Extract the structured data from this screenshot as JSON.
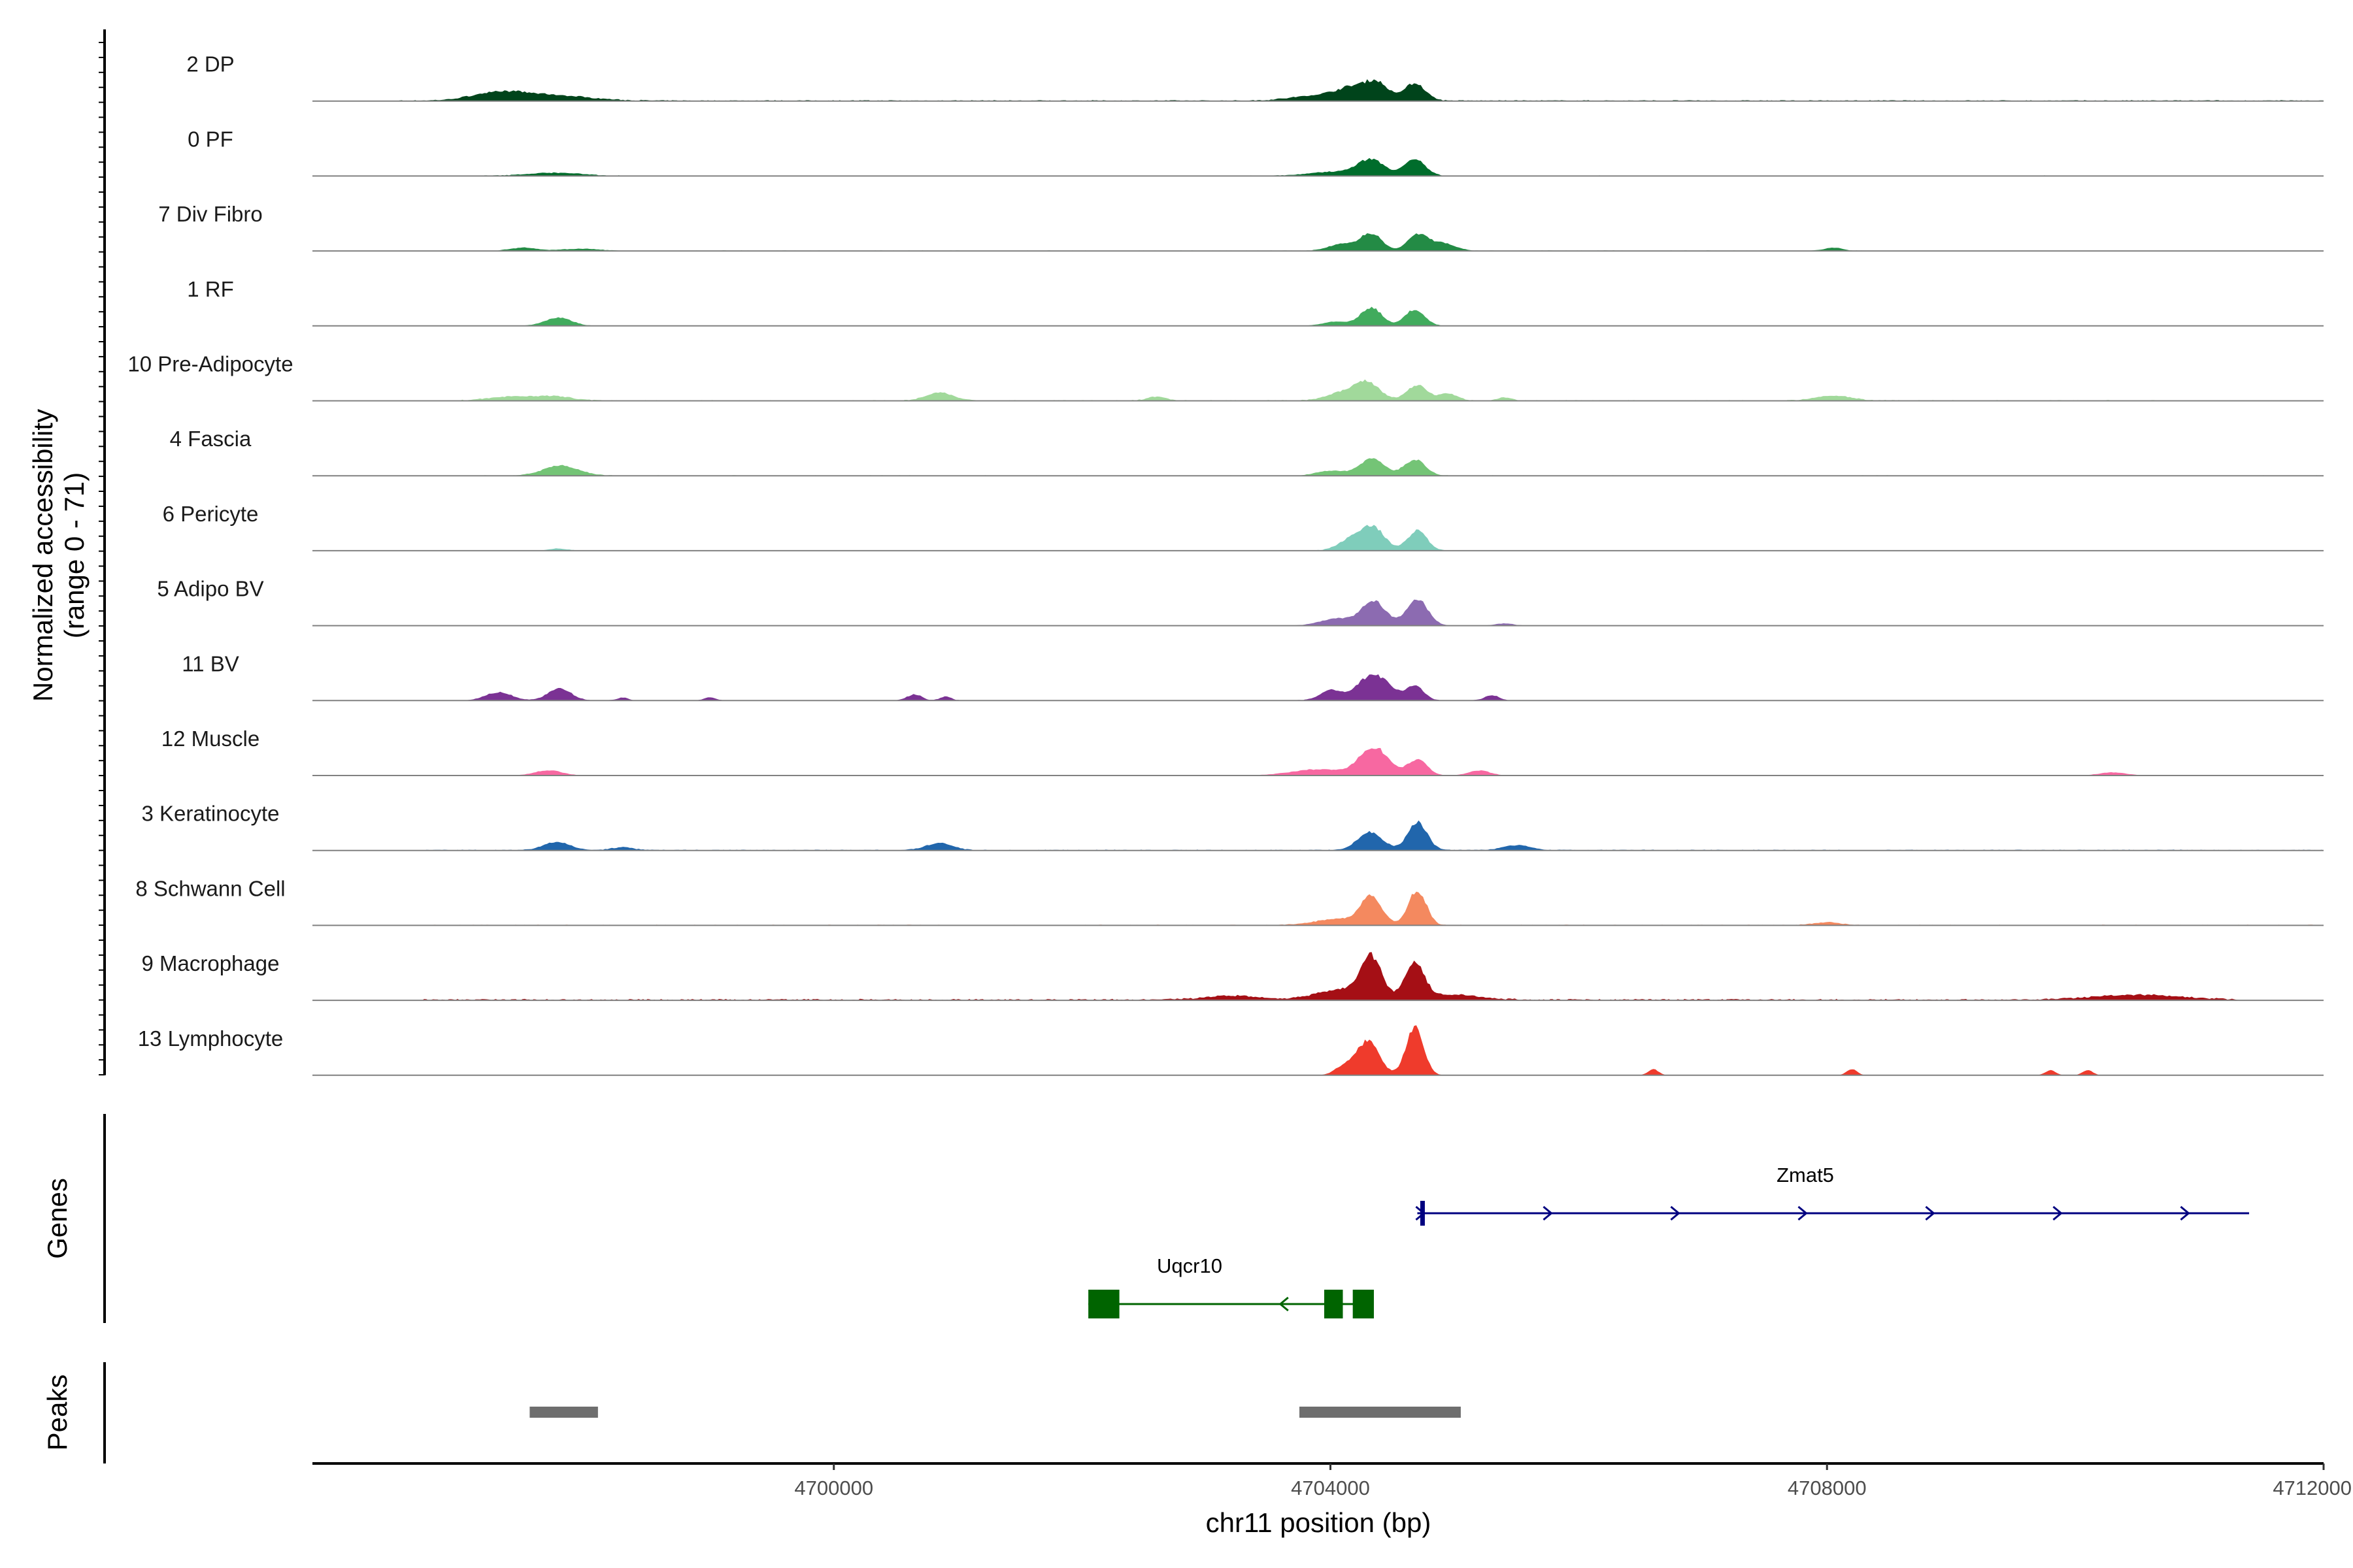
{
  "chart_data": {
    "type": "area",
    "chromosome": "chr11",
    "x_range": [
      4695800,
      4712000
    ],
    "xlabel": "chr11 position (bp)",
    "x_ticks": [
      {
        "value": 4700000,
        "label": "4700000"
      },
      {
        "value": 4704000,
        "label": "4704000"
      },
      {
        "value": 4708000,
        "label": "4708000"
      },
      {
        "value": 4712000,
        "label": "4712000"
      }
    ],
    "ylabel": [
      "Normalized accessibility",
      "(range 0 - 71)"
    ],
    "y_range": [
      0,
      71
    ],
    "side_labels": {
      "genes": "Genes",
      "peaks": "Peaks"
    },
    "tracks": [
      {
        "label": "2 DP",
        "color": "#00441b",
        "peaks": [
          [
            4697300,
            8,
            300
          ],
          [
            4697750,
            5,
            400
          ],
          [
            4704200,
            12,
            200
          ],
          [
            4704380,
            14,
            130
          ],
          [
            4704680,
            17,
            120
          ],
          [
            4703900,
            5,
            300
          ]
        ],
        "noise": [
          4696500,
          4712000
        ],
        "base": 1.0
      },
      {
        "label": "0 PF",
        "color": "#006d2c",
        "peaks": [
          [
            4697750,
            3,
            300
          ],
          [
            4704330,
            15,
            150
          ],
          [
            4704680,
            16,
            120
          ],
          [
            4704050,
            4,
            300
          ]
        ],
        "noise": [
          4696700,
          4711200
        ],
        "base": 0.6
      },
      {
        "label": "7 Div Fibro",
        "color": "#238b45",
        "peaks": [
          [
            4697500,
            3,
            150
          ],
          [
            4697950,
            2,
            200
          ],
          [
            4704100,
            7,
            150
          ],
          [
            4704330,
            17,
            120
          ],
          [
            4704700,
            16,
            110
          ],
          [
            4704900,
            8,
            140
          ],
          [
            4708050,
            3,
            100
          ]
        ],
        "noise": [
          4697300,
          4708300
        ],
        "base": 0.5
      },
      {
        "label": "1 RF",
        "color": "#41ab5d",
        "peaks": [
          [
            4697780,
            8,
            150
          ],
          [
            4704330,
            18,
            120
          ],
          [
            4704680,
            16,
            110
          ],
          [
            4704050,
            4,
            150
          ]
        ],
        "noise": [
          4696700,
          4712000
        ],
        "base": 0.4
      },
      {
        "label": "10 Pre-Adipocyte",
        "color": "#a1d99b",
        "peaks": [
          [
            4697400,
            4,
            250
          ],
          [
            4697750,
            4,
            200
          ],
          [
            4700850,
            8,
            150
          ],
          [
            4704300,
            17,
            140
          ],
          [
            4704700,
            15,
            120
          ],
          [
            4704950,
            7,
            100
          ],
          [
            4704100,
            8,
            180
          ],
          [
            4708050,
            5,
            200
          ],
          [
            4702600,
            4,
            100
          ],
          [
            4705400,
            3,
            80
          ]
        ],
        "noise": [
          4697000,
          4711000
        ],
        "base": 0.8
      },
      {
        "label": "4 Fascia",
        "color": "#74c476",
        "peaks": [
          [
            4697800,
            10,
            200
          ],
          [
            4704330,
            17,
            140
          ],
          [
            4704680,
            16,
            120
          ],
          [
            4704000,
            5,
            150
          ]
        ],
        "noise": [
          4696700,
          4712000
        ],
        "base": 0.5
      },
      {
        "label": "6 Pericyte",
        "color": "#7fcdbb",
        "peaks": [
          [
            4704180,
            12,
            150
          ],
          [
            4704350,
            21,
            130
          ],
          [
            4704700,
            20,
            110
          ],
          [
            4697780,
            2,
            100
          ]
        ],
        "noise": [
          4696700,
          4711500
        ],
        "base": 0.4
      },
      {
        "label": "5 Adipo BV",
        "color": "#8c6bb1",
        "peaks": [
          [
            4704350,
            24,
            140
          ],
          [
            4704700,
            26,
            120
          ],
          [
            4704050,
            7,
            180
          ],
          [
            4705400,
            2,
            100
          ]
        ],
        "noise": [
          4697200,
          4711000
        ],
        "base": 0.3
      },
      {
        "label": "11 BV",
        "color": "#7b3294",
        "peaks": [
          [
            4697300,
            8,
            150
          ],
          [
            4697790,
            12,
            130
          ],
          [
            4704000,
            10,
            120
          ],
          [
            4704350,
            26,
            180
          ],
          [
            4704680,
            14,
            100
          ],
          [
            4700650,
            6,
            80
          ],
          [
            4700900,
            4,
            60
          ],
          [
            4705300,
            5,
            80
          ],
          [
            4698300,
            3,
            60
          ],
          [
            4699000,
            3,
            60
          ]
        ],
        "noise": [
          4697100,
          4710500
        ],
        "base": 0.5
      },
      {
        "label": "12 Muscle",
        "color": "#f768a1",
        "peaks": [
          [
            4697700,
            5,
            150
          ],
          [
            4704350,
            28,
            160
          ],
          [
            4704700,
            16,
            110
          ],
          [
            4703900,
            6,
            300
          ],
          [
            4705200,
            5,
            120
          ],
          [
            4710300,
            3,
            150
          ]
        ],
        "noise": [
          4697400,
          4710600
        ],
        "base": 0.3
      },
      {
        "label": "3 Keratinocyte",
        "color": "#2166ac",
        "peaks": [
          [
            4697770,
            8,
            150
          ],
          [
            4704320,
            18,
            140
          ],
          [
            4704700,
            28,
            110
          ],
          [
            4700850,
            7,
            150
          ],
          [
            4705500,
            5,
            150
          ],
          [
            4698300,
            3,
            120
          ]
        ],
        "noise": [
          4696700,
          4712000
        ],
        "base": 0.8
      },
      {
        "label": "8 Schwann Cell",
        "color": "#f4895f",
        "peaks": [
          [
            4704330,
            28,
            120
          ],
          [
            4704700,
            35,
            100
          ],
          [
            4704050,
            6,
            250
          ],
          [
            4708000,
            3,
            150
          ]
        ],
        "noise": [
          4696700,
          4712000
        ],
        "base": 0.7
      },
      {
        "label": "9 Macrophage",
        "color": "#a50f15",
        "peaks": [
          [
            4704330,
            38,
            120
          ],
          [
            4704680,
            35,
            110
          ],
          [
            4704100,
            10,
            300
          ],
          [
            4710500,
            5,
            500
          ],
          [
            4703200,
            4,
            300
          ],
          [
            4705000,
            5,
            300
          ]
        ],
        "noise": [
          4696700,
          4711300
        ],
        "base": 1.4
      },
      {
        "label": "13 Lymphocyte",
        "color": "#ef3b2c",
        "peaks": [
          [
            4704300,
            34,
            130
          ],
          [
            4704680,
            48,
            100
          ],
          [
            4704100,
            8,
            100
          ],
          [
            4706600,
            6,
            60
          ],
          [
            4708200,
            6,
            60
          ],
          [
            4709800,
            5,
            60
          ],
          [
            4710100,
            5,
            60
          ]
        ],
        "noise": [
          4704000,
          4710200
        ],
        "base": 0.0
      }
    ],
    "genes": [
      {
        "name": "Zmat5",
        "start": 4704700,
        "end": 4711400,
        "strand": "+",
        "color": "#000080",
        "exons": []
      },
      {
        "name": "Uqcr10",
        "start": 4702050,
        "end": 4704300,
        "strand": "-",
        "color": "#006400",
        "exons": [
          [
            4702050,
            4702300
          ],
          [
            4703950,
            4704100
          ],
          [
            4704180,
            4704350
          ]
        ]
      }
    ],
    "peaks": [
      [
        4697550,
        4698100
      ],
      [
        4703750,
        4705050
      ]
    ]
  }
}
